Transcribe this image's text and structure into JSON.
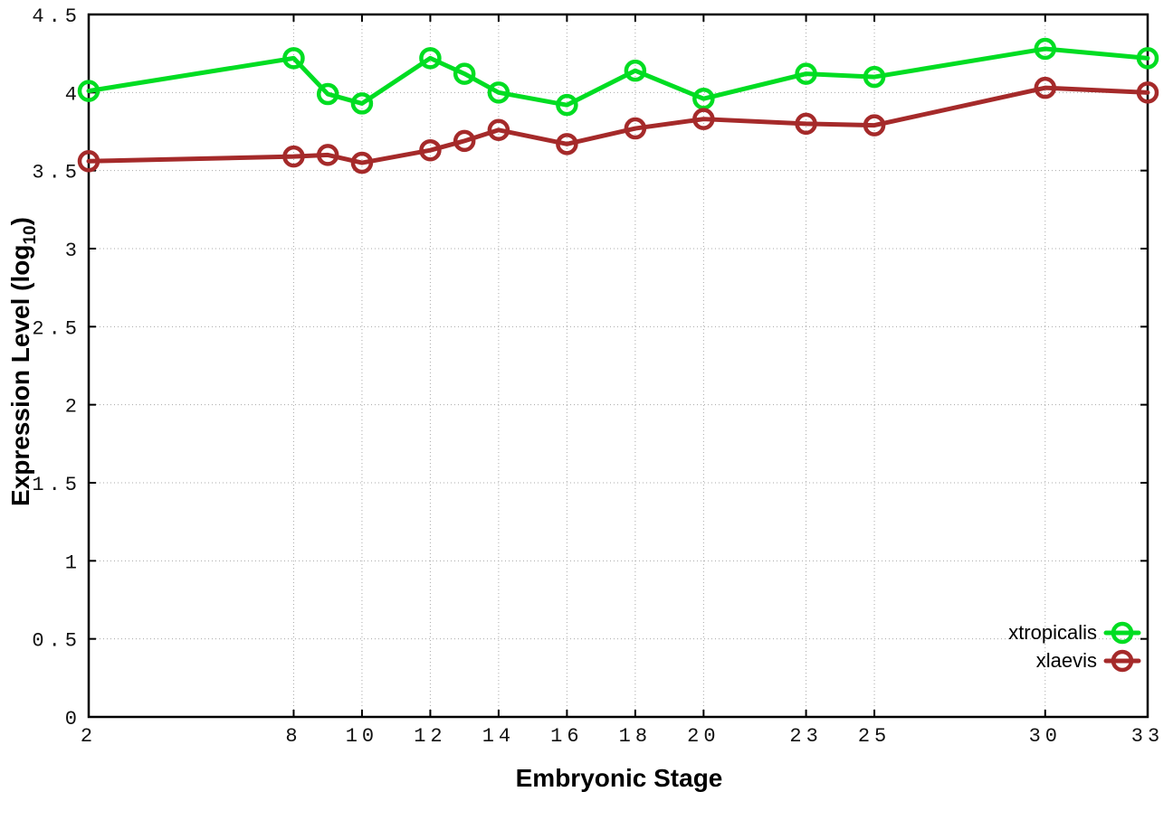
{
  "chart_data": {
    "type": "line",
    "title": "",
    "xlabel": "Embryonic Stage",
    "ylabel": "Expression Level (log10)",
    "ylabel_parts": {
      "prefix": "Expression Level (log",
      "sub": "10",
      "suffix": ")"
    },
    "x": [
      2,
      8,
      9,
      10,
      12,
      13,
      14,
      16,
      18,
      20,
      23,
      25,
      30,
      33
    ],
    "series": [
      {
        "name": "xtropicalis",
        "color": "#00dd22",
        "values": [
          4.01,
          4.22,
          3.99,
          3.93,
          4.22,
          4.12,
          4.0,
          3.92,
          4.14,
          3.96,
          4.12,
          4.1,
          4.28,
          4.22
        ]
      },
      {
        "name": "xlaevis",
        "color": "#a52a2a",
        "values": [
          3.56,
          3.59,
          3.6,
          3.55,
          3.63,
          3.69,
          3.76,
          3.67,
          3.77,
          3.83,
          3.8,
          3.79,
          4.03,
          4.0
        ]
      }
    ],
    "xlim": [
      2,
      33
    ],
    "ylim": [
      0,
      4.5
    ],
    "x_ticks": [
      2,
      8,
      10,
      12,
      14,
      16,
      18,
      20,
      23,
      25,
      30,
      33
    ],
    "x_tick_labels": [
      "2",
      "8",
      "10",
      "12",
      "14",
      "16",
      "18",
      "20",
      "23",
      "25",
      "30",
      "33"
    ],
    "y_ticks": [
      0,
      0.5,
      1,
      1.5,
      2,
      2.5,
      3,
      3.5,
      4,
      4.5
    ],
    "y_tick_labels": [
      "0",
      "0.5",
      "1",
      "1.5",
      "2",
      "2.5",
      "3",
      "3.5",
      "4",
      "4.5"
    ],
    "grid": true,
    "grid_color": "#a8a8a8",
    "axis_color": "#000000",
    "background_color": "#ffffff",
    "marker": "open-circle",
    "legend_position": "bottom-right",
    "legend_entries": [
      "xtropicalis",
      "xlaevis"
    ]
  }
}
